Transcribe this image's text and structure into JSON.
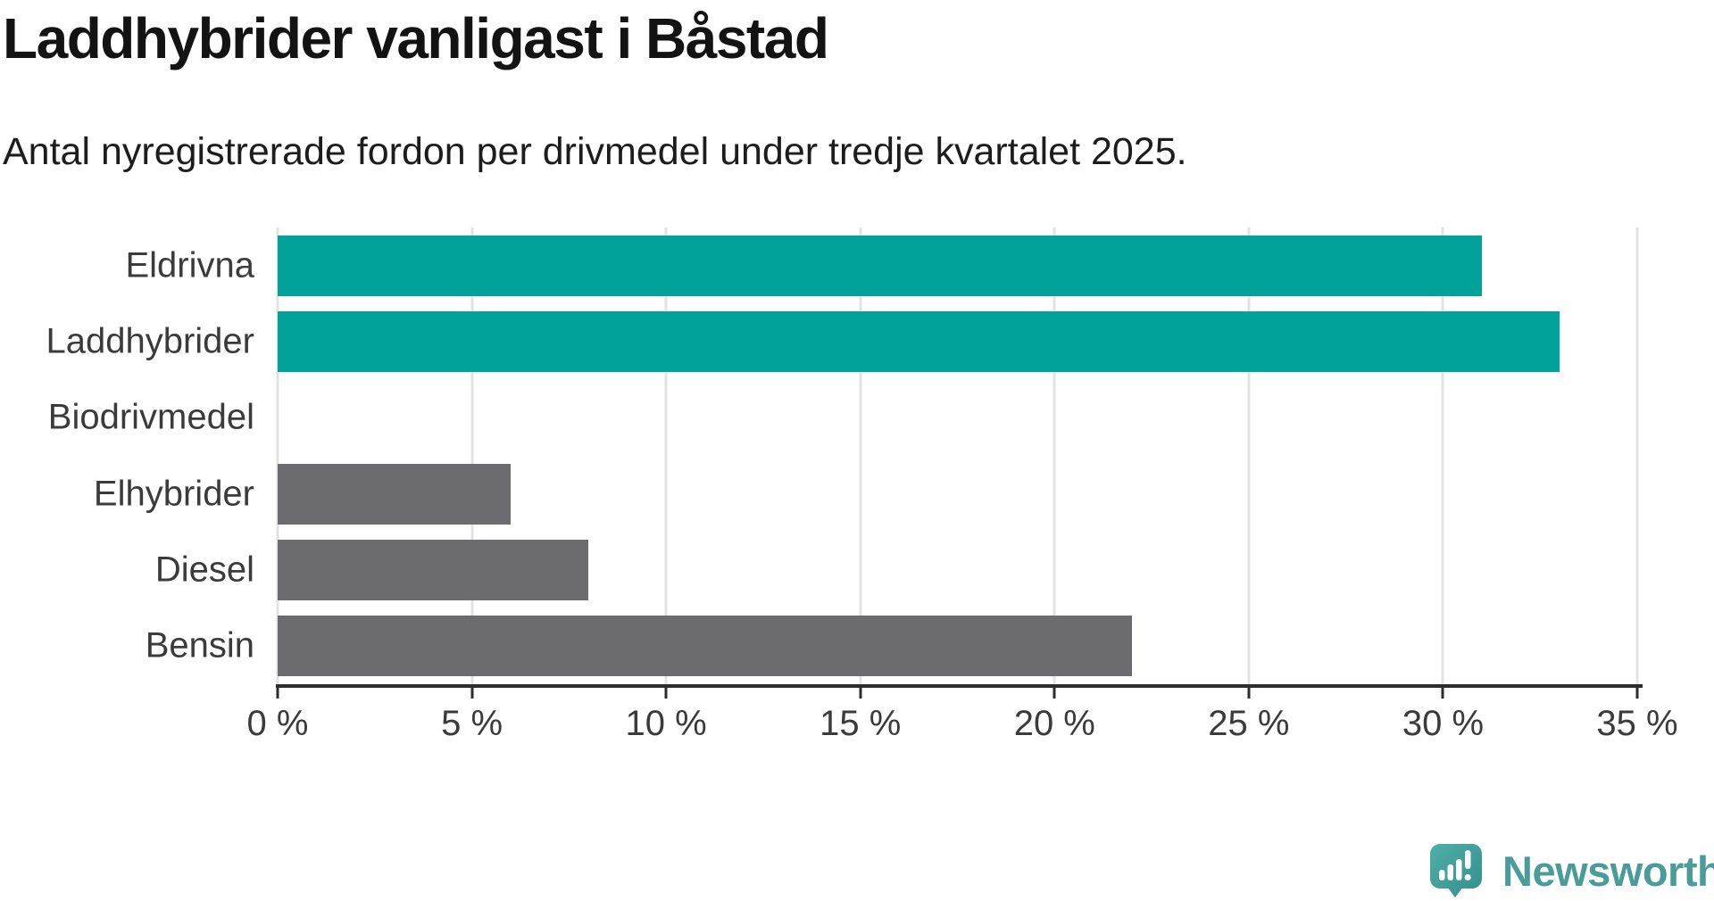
{
  "chart": {
    "title": "Laddhybrider vanligast i Båstad",
    "subtitle": "Antal nyregistrerade fordon per drivmedel under tredje kvartalet 2025."
  },
  "chart_data": {
    "type": "bar",
    "orientation": "horizontal",
    "title": "Laddhybrider vanligast i Båstad",
    "subtitle": "Antal nyregistrerade fordon per drivmedel under tredje kvartalet 2025.",
    "categories": [
      "Eldrivna",
      "Laddhybrider",
      "Biodrivmedel",
      "Elhybrider",
      "Diesel",
      "Bensin"
    ],
    "values": [
      31,
      33,
      0,
      6,
      8,
      22
    ],
    "unit": "%",
    "xlim": [
      0,
      35
    ],
    "x_ticks": [
      0,
      5,
      10,
      15,
      20,
      25,
      30,
      35
    ],
    "x_tick_labels": [
      "0 %",
      "5 %",
      "10 %",
      "15 %",
      "20 %",
      "25 %",
      "30 %",
      "35 %"
    ],
    "bar_colors": [
      "#00a29a",
      "#00a29a",
      "#00a29a",
      "#6c6b70",
      "#6c6b70",
      "#6c6b70"
    ],
    "highlight_color": "#00a29a",
    "default_color": "#6c6b70",
    "grid": true,
    "gridline_color": "#e3e3e3",
    "axis_color": "#2d2d2d",
    "legend": "none"
  },
  "branding": {
    "wordmark": "Newsworthy",
    "logo_color": "#4a9c98",
    "icon": "newsworthy-speech-bubble-barchart-icon"
  }
}
